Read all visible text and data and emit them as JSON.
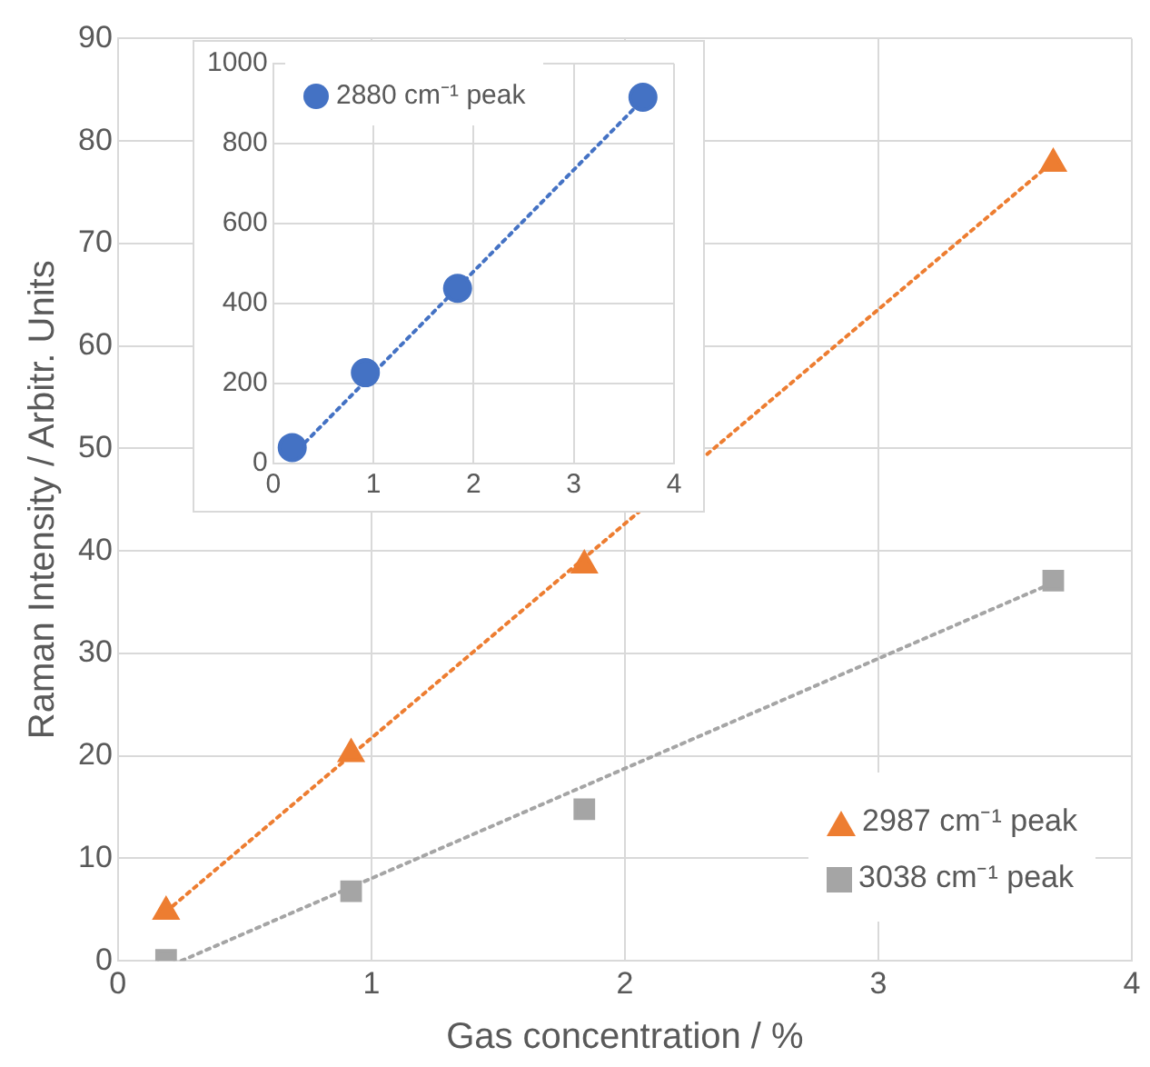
{
  "chart_data": [
    {
      "type": "scatter",
      "xlabel": "Gas concentration / %",
      "ylabel": "Raman Intensity / Arbitr. Units",
      "x": [
        0.19,
        0.92,
        1.84,
        3.69
      ],
      "xlim": [
        0,
        4
      ],
      "xticks": [
        0,
        1,
        2,
        3,
        4
      ],
      "ylim": [
        0,
        90
      ],
      "yticks": [
        0,
        10,
        20,
        30,
        40,
        50,
        60,
        70,
        80,
        90
      ],
      "grid": true,
      "legend": "bottom right",
      "series": [
        {
          "name": "2987 cm⁻¹ peak",
          "color": "#ed7d31",
          "marker": "triangle",
          "values": [
            4.8,
            20.2,
            38.6,
            77.8
          ]
        },
        {
          "name": "3038 cm⁻¹ peak",
          "color": "#a5a5a5",
          "marker": "square",
          "values": [
            0.1,
            6.8,
            14.8,
            37.1
          ]
        },
        {
          "type": "line",
          "color": "#ed7d31",
          "marker": "none",
          "line_style": "dotted",
          "x": [
            0.19,
            3.69
          ],
          "values": [
            4.8,
            78
          ]
        },
        {
          "type": "line",
          "color": "#a5a5a5",
          "marker": "none",
          "line_style": "dotted",
          "x": [
            0.25,
            3.69
          ],
          "values": [
            0,
            36.9
          ]
        }
      ]
    },
    {
      "type": "scatter",
      "x": [
        0.19,
        0.92,
        1.84,
        3.69
      ],
      "xlim": [
        0,
        4
      ],
      "xticks": [
        0,
        1,
        2,
        3,
        4
      ],
      "ylim": [
        0,
        1000
      ],
      "yticks": [
        0,
        200,
        400,
        600,
        800,
        1000
      ],
      "grid": true,
      "legend": "top left",
      "series": [
        {
          "name": "2880 cm⁻¹ peak",
          "color": "#4472c4",
          "marker": "circle",
          "values": [
            40,
            227,
            438,
            916
          ]
        },
        {
          "type": "line",
          "color": "#4472c4",
          "marker": "none",
          "line_style": "dotted",
          "x": [
            0.19,
            3.69
          ],
          "values": [
            20,
            910
          ]
        }
      ]
    }
  ]
}
